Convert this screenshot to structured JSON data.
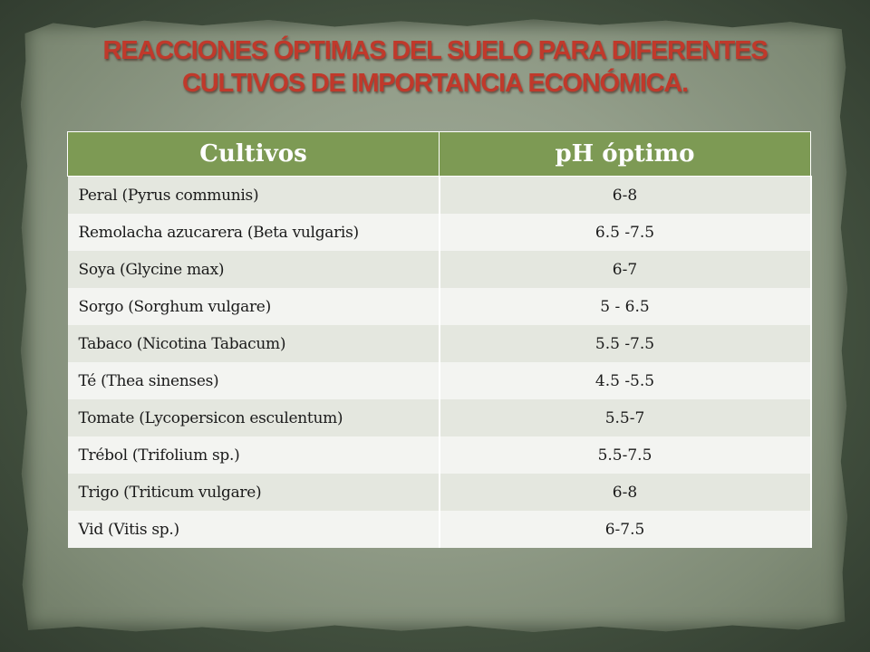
{
  "title": {
    "line1": "REACCIONES ÓPTIMAS DEL SUELO PARA DIFERENTES",
    "line2": "CULTIVOS DE IMPORTANCIA ECONÓMICA."
  },
  "table": {
    "headers": [
      "Cultivos",
      "pH óptimo"
    ],
    "rows": [
      {
        "crop": "Peral (Pyrus communis)",
        "ph": "6-8"
      },
      {
        "crop": "Remolacha azucarera (Beta vulgaris)",
        "ph": "6.5 -7.5"
      },
      {
        "crop": "Soya (Glycine max)",
        "ph": "6-7"
      },
      {
        "crop": "Sorgo (Sorghum vulgare)",
        "ph": "5 - 6.5"
      },
      {
        "crop": "Tabaco (Nicotina Tabacum)",
        "ph": "5.5 -7.5"
      },
      {
        "crop": "Té (Thea sinenses)",
        "ph": "4.5 -5.5"
      },
      {
        "crop": "Tomate (Lycopersicon esculentum)",
        "ph": "5.5-7"
      },
      {
        "crop": "Trébol (Trifolium sp.)",
        "ph": "5.5-7.5"
      },
      {
        "crop": "Trigo (Triticum vulgare)",
        "ph": "6-8"
      },
      {
        "crop": "Vid (Vitis sp.)",
        "ph": "6-7.5"
      }
    ]
  },
  "colors": {
    "title": "#c0392b",
    "header_bg": "#7d9a54",
    "row_odd": "#e4e7df",
    "row_even": "#f3f4f1"
  }
}
